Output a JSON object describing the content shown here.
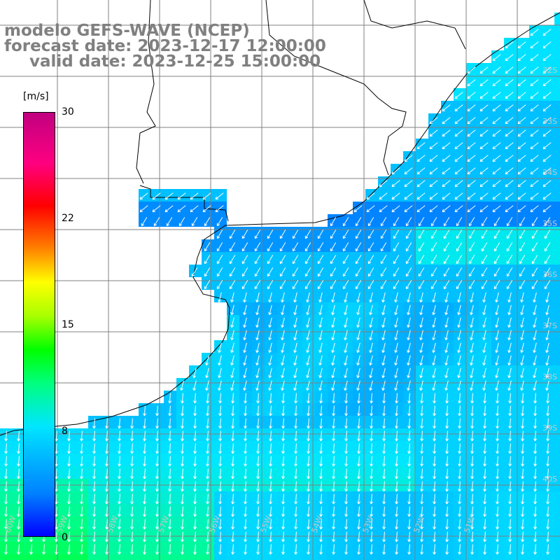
{
  "title": {
    "line1": "modelo GEFS-WAVE (NCEP)",
    "line2": "forecast date: 2023-12-17 12:00:00",
    "line3": "valid date: 2023-12-25 15:00:00"
  },
  "colorbar": {
    "unit": "[m/s]",
    "min": 0,
    "max": 30,
    "labels": [
      "30",
      "22",
      "15",
      "8",
      "0"
    ],
    "label_values": [
      30,
      22,
      15,
      8,
      0
    ],
    "colors": [
      "#0000ff",
      "#0080ff",
      "#00e6ff",
      "#00ff80",
      "#00ff00",
      "#ffff00",
      "#ff8000",
      "#ff0000",
      "#c00080"
    ]
  },
  "map": {
    "variable": "wind speed and direction",
    "land_color": "#ffffff",
    "grid_color": "#808080",
    "coastline_color": "#000000",
    "arrow_color": "#ffffff",
    "bottom_labels": [
      "60W",
      "59W",
      "58W",
      "57W",
      "56W",
      "55W",
      "54W",
      "53W",
      "52W",
      "51W"
    ],
    "right_labels": [
      "32S",
      "33S",
      "34S",
      "35S",
      "36S",
      "37S",
      "38S",
      "39S",
      "40S"
    ]
  }
}
